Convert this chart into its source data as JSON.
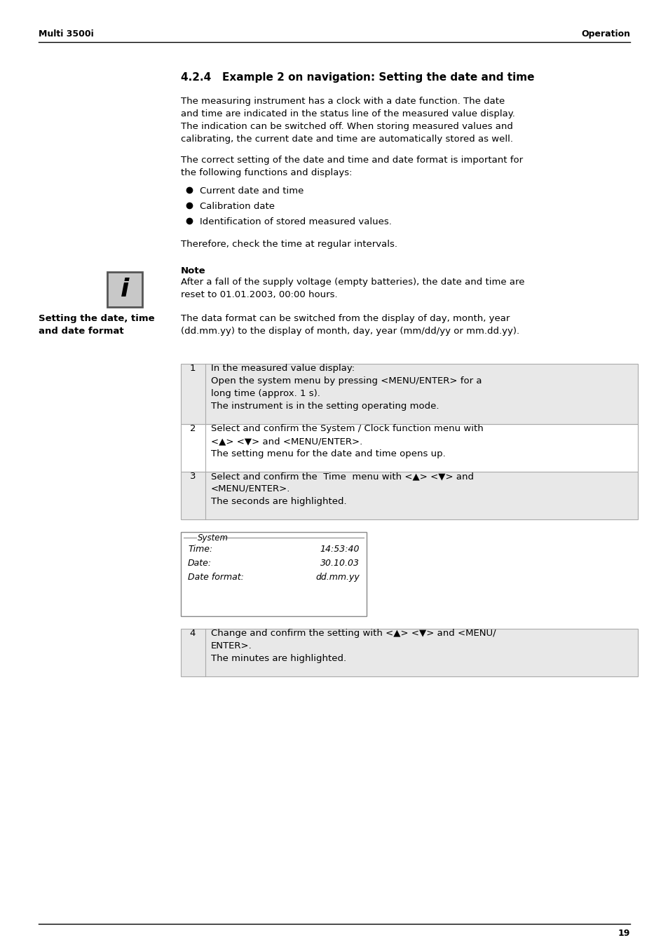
{
  "page_left_header": "Multi 3500i",
  "page_right_header": "Operation",
  "page_number": "19",
  "section_title": "4.2.4   Example 2 on navigation: Setting the date and time",
  "para1_lines": [
    "The measuring instrument has a clock with a date function. The date",
    "and time are indicated in the status line of the measured value display.",
    "The indication can be switched off. When storing measured values and",
    "calibrating, the current date and time are automatically stored as well."
  ],
  "para2_lines": [
    "The correct setting of the date and time and date format is important for",
    "the following functions and displays:"
  ],
  "bullets": [
    "Current date and time",
    "Calibration date",
    "Identification of stored measured values."
  ],
  "para3": "Therefore, check the time at regular intervals.",
  "note_title": "Note",
  "note_lines": [
    "After a fall of the supply voltage (empty batteries), the date and time are",
    "reset to 01.01.2003, 00:00 hours."
  ],
  "sidebar_line1": "Setting the date, time",
  "sidebar_line2": "and date format",
  "sidebar_para_lines": [
    "The data format can be switched from the display of day, month, year",
    "(dd.mm.yy) to the display of month, day, year (mm/dd/yy or mm.dd.yy)."
  ],
  "system_box_title": "System",
  "system_fields": [
    {
      "label": "Time:",
      "value": "14:53:40"
    },
    {
      "label": "Date:",
      "value": "30.10.03"
    },
    {
      "label": "Date format:",
      "value": "dd.mm.yy"
    }
  ],
  "bg_color": "#ffffff",
  "text_color": "#000000",
  "step_shade_color": "#e8e8e8",
  "step_border_color": "#aaaaaa",
  "icon_border_color": "#555555",
  "icon_bg_color": "#c8c8c8",
  "system_box_border": "#888888"
}
